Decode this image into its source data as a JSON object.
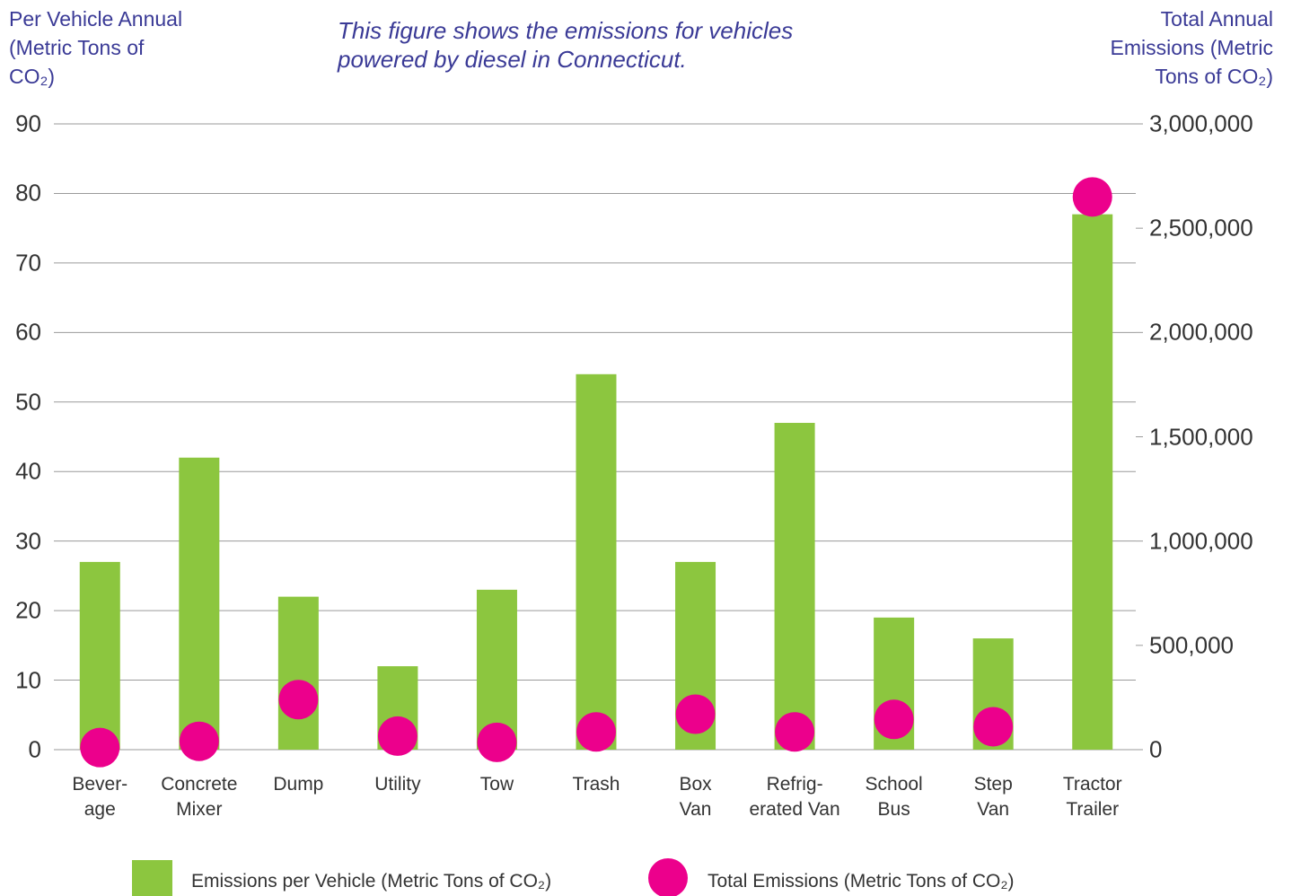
{
  "chart_data": {
    "type": "bar",
    "title": "This figure shows the emissions for vehicles powered by diesel in Connecticut.",
    "y_label": "Per Vehicle Annual (Metric Tons of CO₂)",
    "y2_label": "Total Annual Emissions (Metric Tons of CO₂)",
    "categories": [
      "Bever-\nage",
      "Concrete\nMixer",
      "Dump",
      "Utility",
      "Tow",
      "Trash",
      "Box\nVan",
      "Refrig-\nerated Van",
      "School\nBus",
      "Step\nVan",
      "Tractor\nTrailer"
    ],
    "series": [
      {
        "name": "Emissions per Vehicle (Metric Tons of CO₂)",
        "type": "bar",
        "color": "#8cc63f",
        "axis": "y",
        "values": [
          27,
          42,
          22,
          12,
          23,
          54,
          27,
          47,
          19,
          16,
          77
        ]
      },
      {
        "name": "Total Emissions (Metric Tons of CO₂)",
        "type": "scatter",
        "color": "#ec008c",
        "axis": "y2",
        "values": [
          10000,
          40000,
          240000,
          65000,
          35000,
          85000,
          170000,
          85000,
          145000,
          110000,
          2650000
        ]
      }
    ],
    "ylim": [
      0,
      90
    ],
    "yticks": [
      0,
      10,
      20,
      30,
      40,
      50,
      60,
      70,
      80,
      90
    ],
    "y2lim": [
      0,
      3000000
    ],
    "y2ticks": [
      0,
      {
        "value": 500000,
        "label": "500,000"
      },
      {
        "value": 1000000,
        "label": "1,000,000"
      },
      {
        "value": 1500000,
        "label": "1,500,000"
      },
      {
        "value": 2000000,
        "label": "2,000,000"
      },
      {
        "value": 2500000,
        "label": "2,500,000"
      },
      {
        "value": 3000000,
        "label": "3,000,000"
      }
    ],
    "grid": true
  }
}
